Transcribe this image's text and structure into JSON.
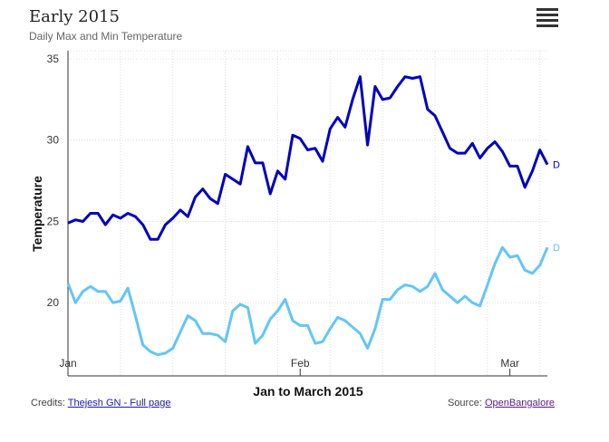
{
  "chart_data": {
    "type": "line",
    "title": "Early 2015",
    "subtitle": "Daily Max and Min Temperature",
    "xlabel": "Jan to March 2015",
    "ylabel": "Temperature",
    "x_ticks": [
      "Jan",
      "Feb",
      "Mar"
    ],
    "y_ticks": [
      20,
      25,
      30,
      35
    ],
    "ylim": [
      15.5,
      35.5
    ],
    "grid": true,
    "series": [
      {
        "color": "#0000c0",
        "end_label": "D",
        "values": [
          24.9,
          25.1,
          25.0,
          25.5,
          25.5,
          24.8,
          25.4,
          25.2,
          25.5,
          25.3,
          24.8,
          23.9,
          23.9,
          24.8,
          25.2,
          25.7,
          25.3,
          26.5,
          27.0,
          26.4,
          26.1,
          27.9,
          27.6,
          27.3,
          29.6,
          28.6,
          28.6,
          26.7,
          28.1,
          27.6,
          30.3,
          30.1,
          29.4,
          29.5,
          28.7,
          30.7,
          31.4,
          30.8,
          32.5,
          33.9,
          29.7,
          33.3,
          32.5,
          32.6,
          33.3,
          33.9,
          33.8,
          33.9,
          31.9,
          31.5,
          30.5,
          29.5,
          29.2,
          29.2,
          29.8,
          28.9,
          29.5,
          29.9,
          29.3,
          28.4,
          28.4,
          27.1,
          28.1,
          29.4,
          28.5
        ]
      },
      {
        "color": "#63c5f7",
        "end_label": "D",
        "values": [
          21.2,
          20.0,
          20.7,
          21.0,
          20.7,
          20.7,
          20.0,
          20.1,
          20.9,
          19.2,
          17.4,
          17.0,
          16.8,
          16.9,
          17.2,
          18.2,
          19.2,
          18.9,
          18.1,
          18.1,
          18.0,
          17.6,
          19.5,
          19.9,
          19.7,
          17.5,
          18.0,
          19.0,
          19.5,
          20.2,
          18.9,
          18.6,
          18.6,
          17.5,
          17.6,
          18.4,
          19.1,
          18.9,
          18.5,
          18.1,
          17.2,
          18.4,
          20.2,
          20.2,
          20.8,
          21.1,
          21.0,
          20.7,
          21.0,
          21.8,
          20.8,
          20.4,
          20.0,
          20.4,
          20.0,
          19.8,
          21.1,
          22.4,
          23.4,
          22.8,
          22.9,
          22.0,
          21.8,
          22.3,
          23.4
        ]
      }
    ]
  },
  "credits": {
    "prefix": "Credits:",
    "link": "Thejesh GN - Full page"
  },
  "source": {
    "prefix": "Source:",
    "link": "OpenBangalore"
  }
}
